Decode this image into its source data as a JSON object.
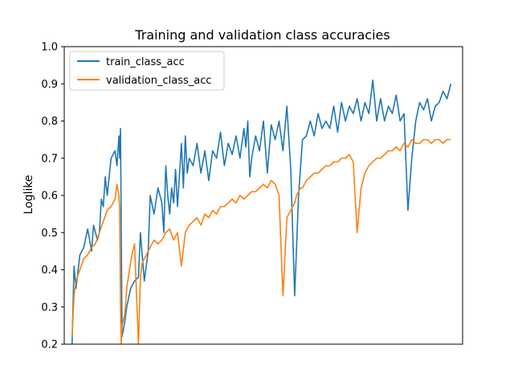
{
  "chart_data": {
    "type": "line",
    "title": "Training and validation class accuracies",
    "xlabel": "",
    "ylabel": "Loglike",
    "xlim": [
      -20,
      1000
    ],
    "ylim": [
      0.2,
      1.0
    ],
    "y_ticks": [
      "0.2",
      "0.3",
      "0.4",
      "0.5",
      "0.6",
      "0.7",
      "0.8",
      "0.9",
      "1.0"
    ],
    "x_ticks_visible": false,
    "grid": false,
    "legend": "upper-left",
    "series": [
      {
        "name": "train_class_acc",
        "color": "#1f77b4",
        "x": [
          0,
          5,
          10,
          20,
          30,
          40,
          50,
          55,
          60,
          65,
          70,
          75,
          80,
          85,
          90,
          100,
          110,
          115,
          120,
          122,
          124,
          126,
          128,
          135,
          140,
          150,
          160,
          170,
          175,
          185,
          190,
          195,
          200,
          210,
          220,
          230,
          235,
          240,
          245,
          250,
          255,
          260,
          265,
          270,
          280,
          285,
          290,
          295,
          300,
          310,
          320,
          330,
          340,
          350,
          360,
          370,
          380,
          390,
          400,
          410,
          420,
          430,
          440,
          445,
          450,
          455,
          460,
          470,
          480,
          490,
          500,
          510,
          520,
          530,
          540,
          550,
          560,
          570,
          580,
          590,
          600,
          610,
          620,
          630,
          640,
          650,
          660,
          670,
          680,
          690,
          700,
          710,
          720,
          730,
          740,
          750,
          760,
          770,
          780,
          790,
          800,
          810,
          820,
          830,
          840,
          850,
          860,
          870,
          880,
          890,
          900,
          910,
          920,
          930,
          940,
          950,
          960,
          970
        ],
        "values": [
          0.2,
          0.41,
          0.35,
          0.44,
          0.46,
          0.51,
          0.45,
          0.52,
          0.5,
          0.48,
          0.5,
          0.59,
          0.57,
          0.65,
          0.6,
          0.7,
          0.72,
          0.68,
          0.76,
          0.7,
          0.78,
          0.5,
          0.22,
          0.26,
          0.3,
          0.35,
          0.37,
          0.38,
          0.5,
          0.37,
          0.41,
          0.45,
          0.6,
          0.55,
          0.62,
          0.58,
          0.5,
          0.68,
          0.6,
          0.55,
          0.62,
          0.58,
          0.67,
          0.57,
          0.74,
          0.62,
          0.76,
          0.66,
          0.7,
          0.68,
          0.74,
          0.66,
          0.72,
          0.64,
          0.72,
          0.7,
          0.77,
          0.68,
          0.74,
          0.71,
          0.76,
          0.7,
          0.78,
          0.73,
          0.8,
          0.65,
          0.7,
          0.76,
          0.72,
          0.8,
          0.66,
          0.79,
          0.75,
          0.8,
          0.72,
          0.84,
          0.67,
          0.33,
          0.6,
          0.75,
          0.76,
          0.8,
          0.76,
          0.82,
          0.78,
          0.8,
          0.78,
          0.84,
          0.77,
          0.85,
          0.8,
          0.84,
          0.82,
          0.86,
          0.8,
          0.85,
          0.82,
          0.91,
          0.8,
          0.86,
          0.8,
          0.84,
          0.82,
          0.87,
          0.8,
          0.82,
          0.56,
          0.7,
          0.8,
          0.85,
          0.83,
          0.86,
          0.8,
          0.84,
          0.85,
          0.88,
          0.86,
          0.9
        ]
      },
      {
        "name": "validation_class_acc",
        "color": "#ff7f0e",
        "x": [
          0,
          5,
          10,
          20,
          30,
          40,
          50,
          60,
          70,
          80,
          90,
          100,
          110,
          115,
          120,
          122,
          124,
          126,
          128,
          135,
          140,
          150,
          155,
          160,
          170,
          175,
          180,
          190,
          200,
          210,
          220,
          230,
          240,
          250,
          260,
          270,
          280,
          290,
          300,
          310,
          320,
          330,
          340,
          350,
          360,
          370,
          380,
          390,
          400,
          410,
          420,
          430,
          440,
          450,
          460,
          470,
          480,
          490,
          500,
          510,
          520,
          530,
          540,
          550,
          560,
          570,
          575,
          580,
          585,
          590,
          600,
          610,
          620,
          630,
          640,
          650,
          660,
          670,
          680,
          690,
          700,
          710,
          720,
          730,
          740,
          750,
          760,
          770,
          780,
          790,
          800,
          810,
          820,
          830,
          840,
          850,
          860,
          870,
          880,
          890,
          900,
          910,
          920,
          930,
          940,
          950,
          960,
          970
        ],
        "values": [
          0.22,
          0.33,
          0.37,
          0.4,
          0.43,
          0.44,
          0.46,
          0.47,
          0.5,
          0.53,
          0.56,
          0.57,
          0.59,
          0.63,
          0.6,
          0.56,
          0.3,
          0.2,
          0.25,
          0.28,
          0.35,
          0.42,
          0.45,
          0.47,
          0.2,
          0.38,
          0.42,
          0.44,
          0.46,
          0.48,
          0.47,
          0.48,
          0.5,
          0.51,
          0.48,
          0.5,
          0.41,
          0.5,
          0.52,
          0.53,
          0.54,
          0.52,
          0.55,
          0.54,
          0.56,
          0.55,
          0.57,
          0.57,
          0.58,
          0.59,
          0.58,
          0.6,
          0.59,
          0.6,
          0.61,
          0.61,
          0.62,
          0.63,
          0.62,
          0.64,
          0.63,
          0.6,
          0.33,
          0.54,
          0.56,
          0.58,
          0.6,
          0.61,
          0.62,
          0.62,
          0.64,
          0.65,
          0.66,
          0.66,
          0.67,
          0.68,
          0.68,
          0.69,
          0.69,
          0.7,
          0.7,
          0.71,
          0.69,
          0.5,
          0.62,
          0.66,
          0.68,
          0.69,
          0.7,
          0.7,
          0.71,
          0.72,
          0.72,
          0.73,
          0.72,
          0.74,
          0.73,
          0.75,
          0.74,
          0.74,
          0.75,
          0.75,
          0.74,
          0.75,
          0.75,
          0.74,
          0.75,
          0.75
        ]
      }
    ]
  }
}
